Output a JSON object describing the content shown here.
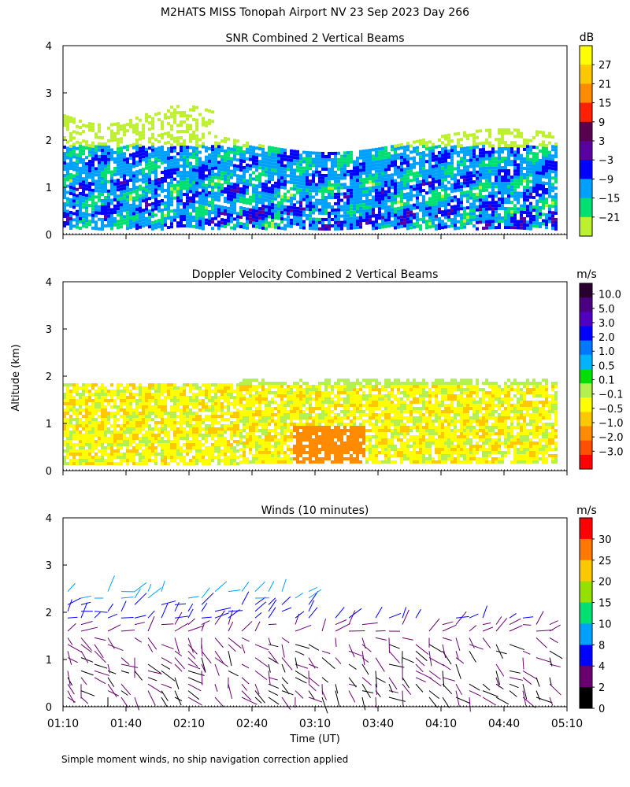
{
  "title": "M2HATS MISS Tonopah Airport NV  23 Sep 2023 Day 266",
  "footnote": "Simple moment winds, no ship navigation correction applied",
  "shared_axes": {
    "ylabel": "Altitude (km)",
    "xlabel": "Time (UT)",
    "x_tick_labels": [
      "01:10",
      "01:40",
      "02:10",
      "02:40",
      "03:10",
      "03:40",
      "04:10",
      "04:40",
      "05:10"
    ],
    "y_ticks": [
      "0",
      "1",
      "2",
      "3",
      "4"
    ]
  },
  "chart_data": [
    {
      "type": "heatmap",
      "title": "SNR Combined 2 Vertical Beams",
      "unit": "dB",
      "xlim": [
        "01:10",
        "05:10"
      ],
      "ylim": [
        0,
        4
      ],
      "data_extent_km": [
        0.15,
        2.6
      ],
      "colorbar": {
        "labels": [
          "27",
          "21",
          "15",
          "9",
          "3",
          "−3",
          "−9",
          "−15",
          "−21"
        ],
        "colors": [
          "#ffff00",
          "#ffc800",
          "#ff8c00",
          "#ff2000",
          "#5a0050",
          "#5a00a0",
          "#0000ff",
          "#00a0ff",
          "#00e070",
          "#bef032"
        ]
      }
    },
    {
      "type": "heatmap",
      "title": "Doppler Velocity Combined 2 Vertical Beams",
      "unit": "m/s",
      "xlim": [
        "01:10",
        "05:10"
      ],
      "ylim": [
        0,
        4
      ],
      "data_extent_km": [
        0.15,
        2.0
      ],
      "colorbar": {
        "labels": [
          "10.0",
          "5.0",
          "3.0",
          "2.0",
          "1.0",
          "0.5",
          "0.1",
          "−0.1",
          "−0.5",
          "−1.0",
          "−2.0",
          "−3.0"
        ],
        "colors": [
          "#2a0030",
          "#4b0082",
          "#5000c0",
          "#0000ff",
          "#0078ff",
          "#00b4ff",
          "#00e000",
          "#b4f050",
          "#ffff00",
          "#ffc800",
          "#ff8c00",
          "#ff5000",
          "#ff0000"
        ]
      }
    },
    {
      "type": "scatter",
      "title": "Winds (10 minutes)",
      "unit": "m/s",
      "xlim": [
        "01:10",
        "05:10"
      ],
      "ylim": [
        0,
        4
      ],
      "colorbar": {
        "labels": [
          "30",
          "25",
          "20",
          "15",
          "10",
          "8",
          "4",
          "2",
          "0"
        ],
        "colors": [
          "#ff0000",
          "#ff7800",
          "#ffc800",
          "#96e000",
          "#00e070",
          "#00a0ff",
          "#0000ff",
          "#6a0070",
          "#000000"
        ]
      }
    }
  ]
}
